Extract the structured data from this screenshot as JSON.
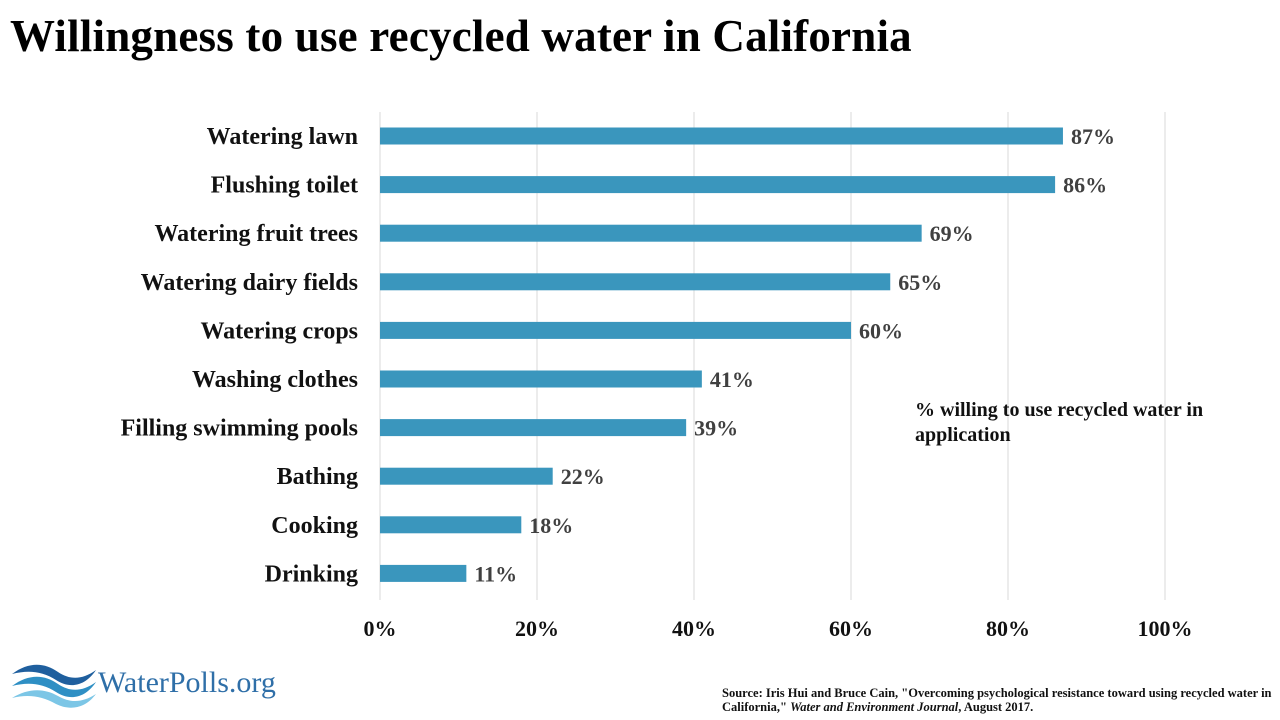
{
  "title": "Willingness to use recycled water in California",
  "annotation": "% willing to use recycled water in application",
  "logo": {
    "text": "WaterPolls.org",
    "icon": "wave-logo-icon"
  },
  "source": {
    "prefix": "Source: Iris Hui and Bruce Cain, \"Overcoming psychological resistance toward using recycled water in California,\" ",
    "journal": "Water and Environment Journal",
    "suffix": ", August 2017."
  },
  "colors": {
    "bar": "#3a96bd",
    "grid": "#d9d9d9",
    "logo": "#2f6fa8"
  },
  "chart_data": {
    "type": "bar",
    "orientation": "horizontal",
    "categories": [
      "Watering lawn",
      "Flushing toilet",
      "Watering fruit trees",
      "Watering dairy fields",
      "Watering crops",
      "Washing clothes",
      "Filling swimming pools",
      "Bathing",
      "Cooking",
      "Drinking"
    ],
    "values": [
      87,
      86,
      69,
      65,
      60,
      41,
      39,
      22,
      18,
      11
    ],
    "value_labels": [
      "87%",
      "86%",
      "69%",
      "65%",
      "60%",
      "41%",
      "39%",
      "22%",
      "18%",
      "11%"
    ],
    "xlim": [
      0,
      100
    ],
    "xticks": [
      0,
      20,
      40,
      60,
      80,
      100
    ],
    "xtick_labels": [
      "0%",
      "20%",
      "40%",
      "60%",
      "80%",
      "100%"
    ],
    "grid": "vertical",
    "legend": "none"
  }
}
